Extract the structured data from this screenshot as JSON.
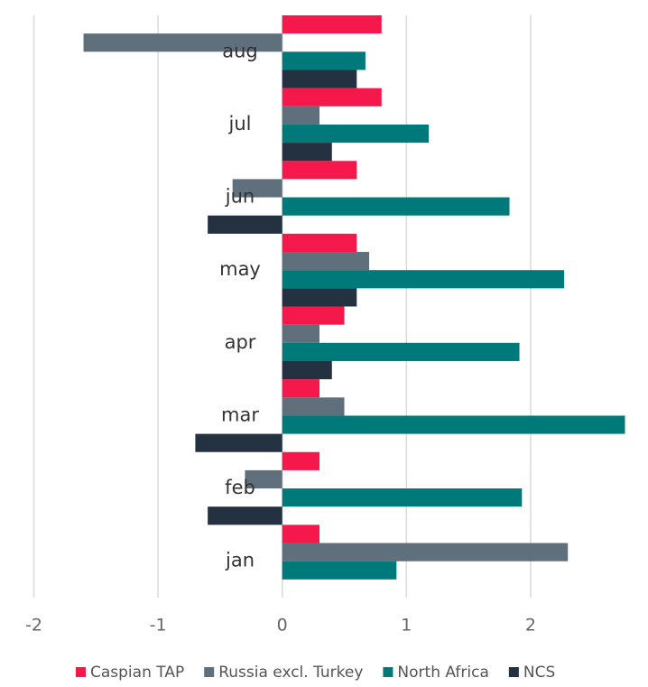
{
  "chart_data": {
    "type": "hbar",
    "categories": [
      "jan",
      "feb",
      "mar",
      "apr",
      "may",
      "jun",
      "jul",
      "aug"
    ],
    "series": [
      {
        "name": "Caspian TAP",
        "color": "#f5184a",
        "values": [
          0.3,
          0.3,
          0.3,
          0.5,
          0.6,
          0.6,
          0.8,
          0.8
        ]
      },
      {
        "name": "Russia excl. Turkey",
        "color": "#5f6f7b",
        "values": [
          2.3,
          -0.3,
          0.5,
          0.3,
          0.7,
          -0.4,
          0.3,
          -1.6
        ]
      },
      {
        "name": "North Africa",
        "color": "#00797a",
        "values": [
          0.92,
          1.93,
          2.76,
          1.91,
          2.27,
          1.83,
          1.18,
          0.67
        ]
      },
      {
        "name": "NCS",
        "color": "#233140",
        "values": [
          null,
          -0.6,
          -0.7,
          0.4,
          0.6,
          -0.6,
          0.4,
          0.6
        ]
      }
    ],
    "xlim": [
      -2.2,
      2.8
    ],
    "xticks": [
      -2,
      -1,
      0,
      1,
      2
    ],
    "grid": true,
    "legend": "bottom"
  }
}
